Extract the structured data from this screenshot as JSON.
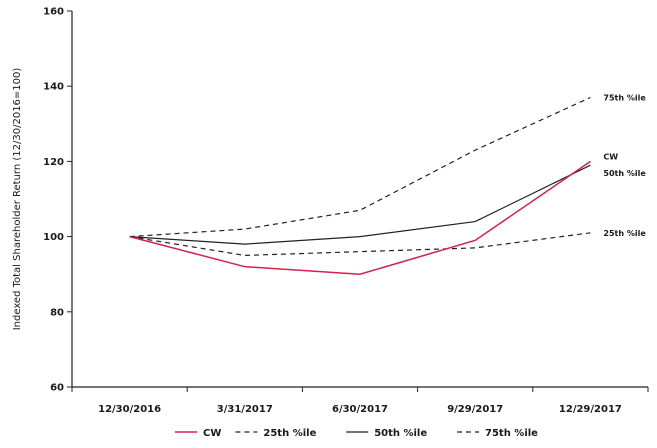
{
  "chart_data": {
    "type": "line",
    "title": "",
    "xlabel": "",
    "ylabel": "Indexed Total Shareholder Return (12/30/2016=100)",
    "categories": [
      "12/30/2016",
      "3/31/2017",
      "6/30/2017",
      "9/29/2017",
      "12/29/2017"
    ],
    "ylim": [
      60,
      160
    ],
    "yticks": [
      60,
      80,
      100,
      120,
      140,
      160
    ],
    "grid": false,
    "legend_position": "bottom",
    "series": [
      {
        "name": "CW",
        "values": [
          100,
          92,
          90,
          99,
          120
        ],
        "color": "#d6204e",
        "dash": "solid",
        "end_label": "CW"
      },
      {
        "name": "25th %ile",
        "values": [
          100,
          95,
          96,
          97,
          101
        ],
        "color": "#222222",
        "dash": "dashed",
        "end_label": "25th %ile"
      },
      {
        "name": "50th %ile",
        "values": [
          100,
          98,
          100,
          104,
          119
        ],
        "color": "#222222",
        "dash": "solid",
        "end_label": "50th %ile"
      },
      {
        "name": "75th %ile",
        "values": [
          100,
          102,
          107,
          123,
          137
        ],
        "color": "#222222",
        "dash": "dashed",
        "end_label": "75th %ile"
      }
    ]
  }
}
